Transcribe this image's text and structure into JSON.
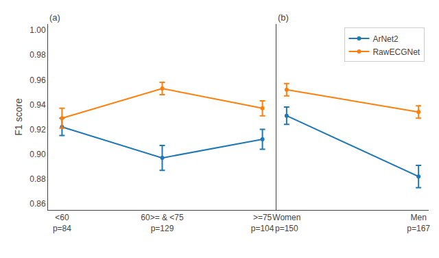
{
  "chart_data": [
    {
      "type": "line",
      "title": "(a)",
      "ylabel": "F1 score",
      "categories": [
        "<60\np=84",
        "60>= & <75\np=129",
        ">=75\np=104"
      ],
      "series": [
        {
          "name": "ArNet2",
          "color": "#1f77b4",
          "values": [
            0.922,
            0.897,
            0.912
          ],
          "error": [
            0.007,
            0.01,
            0.008
          ]
        },
        {
          "name": "RawECGNet",
          "color": "#ff7f0e",
          "values": [
            0.929,
            0.953,
            0.937
          ],
          "error": [
            0.008,
            0.005,
            0.006
          ]
        }
      ],
      "ylim": [
        0.855,
        1.005
      ],
      "yticks": [
        0.86,
        0.88,
        {
          "value": 0.9,
          "label": "0.90"
        },
        0.92,
        0.94,
        0.96,
        0.98,
        {
          "value": 1,
          "label": "1.00"
        }
      ],
      "grid": false,
      "marker": "circle",
      "line_style": "solid"
    },
    {
      "type": "line",
      "title": "(b)",
      "categories": [
        "Women\np=150",
        "Men\np=167"
      ],
      "series": [
        {
          "name": "ArNet2",
          "color": "#1f77b4",
          "values": [
            0.931,
            0.882
          ],
          "error": [
            0.007,
            0.009
          ]
        },
        {
          "name": "RawECGNet",
          "color": "#ff7f0e",
          "values": [
            0.952,
            0.934
          ],
          "error": [
            0.005,
            0.005
          ]
        }
      ],
      "ylim": [
        0.855,
        1.005
      ],
      "tick_labels": "x",
      "legend": "upper right",
      "grid": false,
      "marker": "circle",
      "line_style": "solid"
    }
  ]
}
